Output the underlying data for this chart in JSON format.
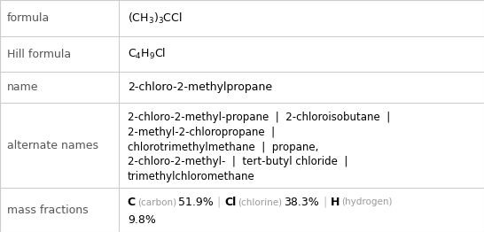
{
  "col_split": 0.245,
  "background_color": "#ffffff",
  "border_color": "#cccccc",
  "label_color": "#555555",
  "text_color": "#000000",
  "element_name_color": "#999999",
  "font_size": 9.0,
  "row_proportions": [
    0.158,
    0.153,
    0.132,
    0.368,
    0.189
  ],
  "formula_display": "(CH$_3$)$_3$CCl",
  "hill_display": "C$_4$H$_9$Cl",
  "name_text": "2-chloro-2-methylpropane",
  "alt_lines": [
    "2-chloro-2-methyl-propane  |  2-chloroisobutane  |",
    "2-methyl-2-chloropropane  |",
    "chlorotrimethylmethane  |  propane,",
    "2-chloro-2-methyl-  |  tert-butyl chloride  |",
    "trimethylchloromethane"
  ],
  "mass_fractions": [
    {
      "element": "C",
      "name": "carbon",
      "value": "51.9%"
    },
    {
      "element": "Cl",
      "name": "chlorine",
      "value": "38.3%"
    },
    {
      "element": "H",
      "name": "hydrogen",
      "value": "9.8%"
    }
  ],
  "row_labels": [
    "formula",
    "Hill formula",
    "name",
    "alternate names",
    "mass fractions"
  ]
}
